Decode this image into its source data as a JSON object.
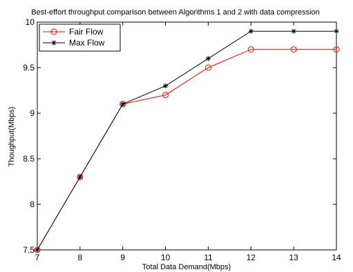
{
  "chart_data": {
    "type": "line",
    "title": "Best-effort throughput comparison between Algorithms 1 and 2 with data compression",
    "xlabel": "Total Data Demand(Mbps)",
    "ylabel": "Thoughput(Mbps)",
    "xlim": [
      7,
      14
    ],
    "ylim": [
      7.5,
      10
    ],
    "xticks": [
      7,
      8,
      9,
      10,
      11,
      12,
      13,
      14
    ],
    "yticks": [
      7.5,
      8,
      8.5,
      9,
      9.5,
      10
    ],
    "ytick_labels": [
      "7.5",
      "8",
      "8.5",
      "9",
      "9.5",
      "10"
    ],
    "grid": false,
    "legend_position": "top-left",
    "x": [
      7,
      8,
      9,
      10,
      11,
      12,
      13,
      14
    ],
    "series": [
      {
        "name": "Fair Flow",
        "values": [
          7.5,
          8.3,
          9.1,
          9.2,
          9.5,
          9.7,
          9.7,
          9.7
        ],
        "color": "#ff0000",
        "marker": "circle"
      },
      {
        "name": "Max Flow",
        "values": [
          7.5,
          8.3,
          9.1,
          9.3,
          9.6,
          9.9,
          9.9,
          9.9
        ],
        "color": "#000000",
        "marker": "star"
      }
    ]
  }
}
